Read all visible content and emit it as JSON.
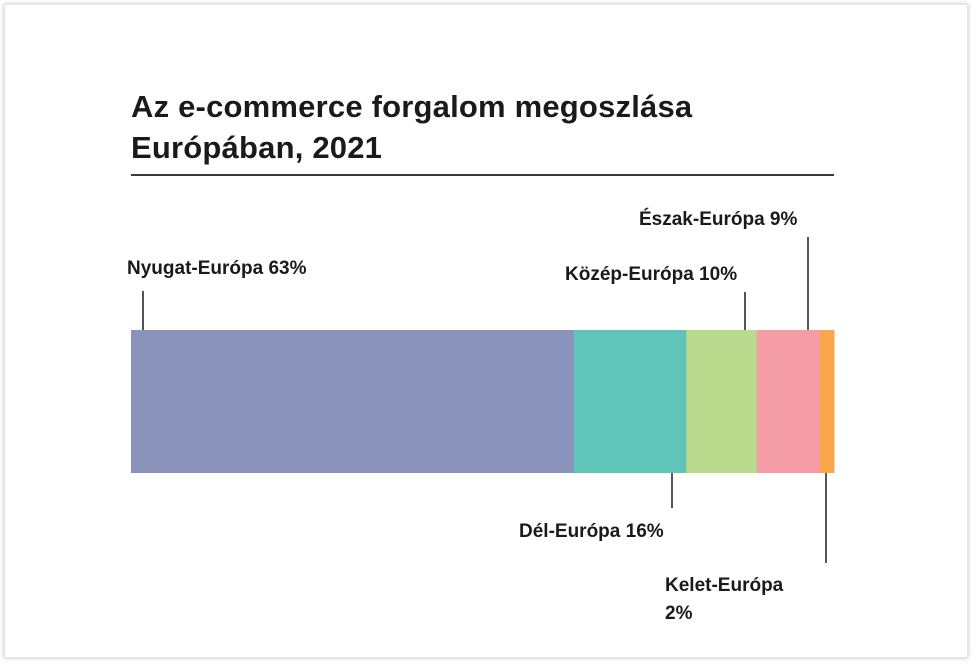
{
  "chart_data": {
    "type": "bar",
    "orientation": "horizontal-stacked-100",
    "title_lines": [
      "Az e-commerce forgalom megoszlása",
      "Európában, 2021"
    ],
    "categories": [
      "Nyugat-Európa",
      "Dél-Európa",
      "Közép-Európa",
      "Észak-Európa",
      "Kelet-Európa"
    ],
    "values": [
      63,
      16,
      10,
      9,
      2
    ],
    "unit": "%",
    "colors": [
      "#8a93bc",
      "#60c4b8",
      "#badb8e",
      "#f59da6",
      "#f9a74a"
    ],
    "labels": [
      {
        "lines": [
          "Nyugat-Európa 63%"
        ],
        "position": "above"
      },
      {
        "lines": [
          "Dél-Európa 16%"
        ],
        "position": "below"
      },
      {
        "lines": [
          "Közép-Európa 10%"
        ],
        "position": "above"
      },
      {
        "lines": [
          "Észak-Európa 9%"
        ],
        "position": "above"
      },
      {
        "lines": [
          "Kelet-Európa",
          "2%"
        ],
        "position": "below"
      }
    ],
    "grid": false,
    "legend": "none"
  }
}
